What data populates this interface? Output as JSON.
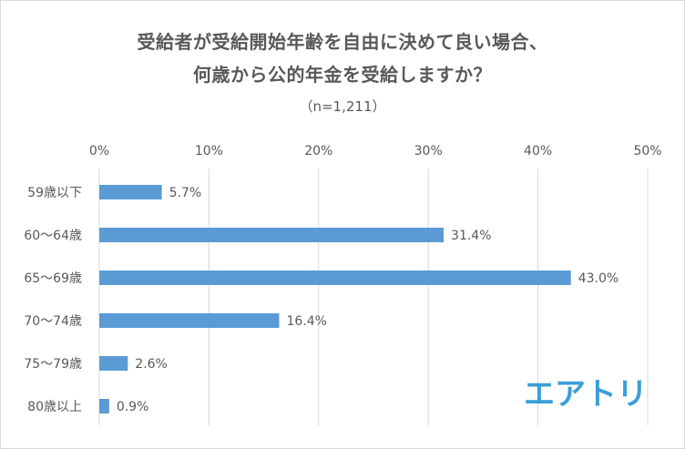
{
  "chart_data": {
    "type": "bar",
    "orientation": "horizontal",
    "title_line1": "受給者が受給開始年齢を自由に決めて良い場合、",
    "title_line2": "何歳から公的年金を受給しますか？",
    "subtitle": "（n=1,211）",
    "categories": [
      "59歳以下",
      "60～64歳",
      "65～69歳",
      "70～74歳",
      "75～79歳",
      "80歳以上"
    ],
    "values": [
      5.7,
      31.4,
      43.0,
      16.4,
      2.6,
      0.9
    ],
    "value_labels": [
      "5.7%",
      "31.4%",
      "43.0%",
      "16.4%",
      "2.6%",
      "0.9%"
    ],
    "x_ticks": [
      "0%",
      "10%",
      "20%",
      "30%",
      "40%",
      "50%"
    ],
    "xlim": [
      0,
      50
    ],
    "grid": true,
    "bar_color": "#5b9bd5"
  },
  "logo_text": "エアトリ",
  "colors": {
    "text": "#595959",
    "grid": "#d9d9d9",
    "logo": "#3a9fd8"
  }
}
